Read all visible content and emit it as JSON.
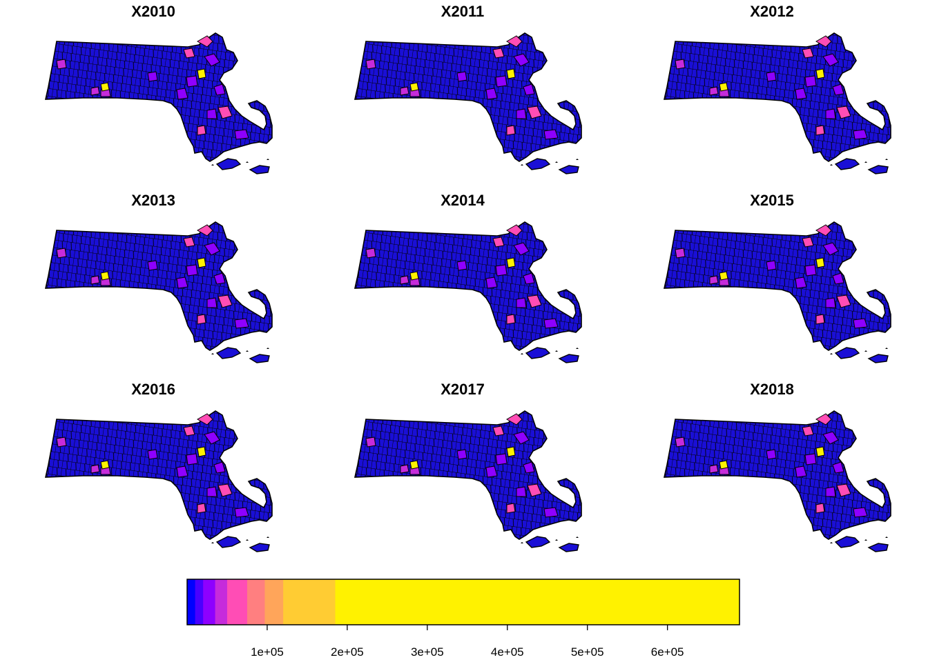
{
  "figure": {
    "panels": [
      {
        "title": "X2010"
      },
      {
        "title": "X2011"
      },
      {
        "title": "X2012"
      },
      {
        "title": "X2013"
      },
      {
        "title": "X2014"
      },
      {
        "title": "X2015"
      },
      {
        "title": "X2016"
      },
      {
        "title": "X2017"
      },
      {
        "title": "X2018"
      }
    ],
    "legend": {
      "type": "continuous-colorbar",
      "placement": "bottom-center",
      "range": [
        0,
        690000
      ],
      "breaks": [
        0,
        10000,
        20000,
        35000,
        50000,
        75000,
        97000,
        120000,
        185000,
        690000
      ],
      "colors": [
        "#0000FF",
        "#4A00FF",
        "#8E00FF",
        "#C62BDB",
        "#FF4DB5",
        "#FF7F80",
        "#FFA55A",
        "#FFCC33",
        "#FFF200"
      ],
      "ticks": [
        {
          "value": 100000,
          "label": "1e+05"
        },
        {
          "value": 200000,
          "label": "2e+05"
        },
        {
          "value": 300000,
          "label": "3e+05"
        },
        {
          "value": 400000,
          "label": "4e+05"
        },
        {
          "value": 500000,
          "label": "5e+05"
        },
        {
          "value": 600000,
          "label": "6e+05"
        }
      ]
    },
    "colors": {
      "boundary": "#000000",
      "base_fill": "#1A0FD6",
      "highlight_magenta": "#FF4DB5",
      "highlight_purple": "#8E00FF",
      "highlight_yellow": "#FFF200",
      "highlight_orange": "#FFCC33"
    }
  }
}
